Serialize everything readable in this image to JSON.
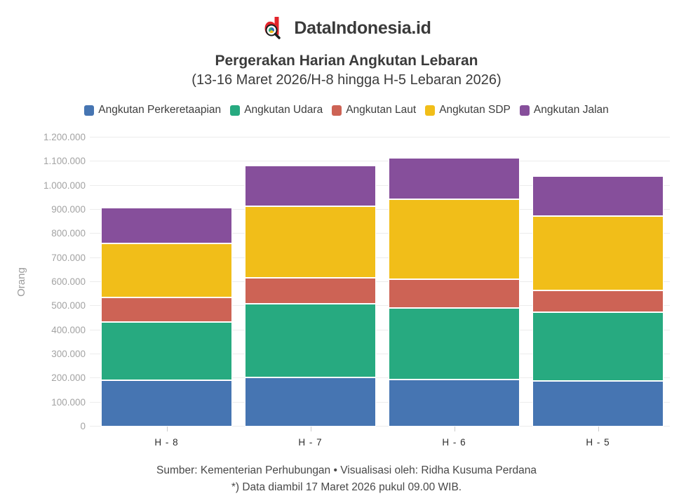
{
  "brand": {
    "name": "DataIndonesia.id",
    "logo_color": "#e3242b"
  },
  "title": "Pergerakan Harian Angkutan Lebaran",
  "subtitle": "(13-16 Maret 2026/H-8 hingga H-5 Lebaran 2026)",
  "footer": {
    "line1": "Sumber: Kementerian Perhubungan • Visualisasi oleh: Ridha Kusuma Perdana",
    "line2": "*) Data diambil 17 Maret 2026 pukul 09.00 WIB."
  },
  "chart_data": {
    "type": "bar",
    "stacked": true,
    "title": "Pergerakan Harian Angkutan Lebaran",
    "subtitle": "(13-16 Maret 2026/H-8 hingga H-5 Lebaran 2026)",
    "xlabel": "",
    "ylabel": "Orang",
    "ylim": [
      0,
      1200000
    ],
    "ytick_step": 100000,
    "ytick_labels": [
      "0",
      "100.000",
      "200.000",
      "300.000",
      "400.000",
      "500.000",
      "600.000",
      "700.000",
      "800.000",
      "900.000",
      "1.000.000",
      "1.100.000",
      "1.200.000"
    ],
    "grid": true,
    "legend_position": "top",
    "categories": [
      "H - 8",
      "H - 7",
      "H - 6",
      "H - 5"
    ],
    "series": [
      {
        "name": "Angkutan Perkeretaapian",
        "color": "#4675B2",
        "values": [
          193000,
          203000,
          196000,
          189000
        ]
      },
      {
        "name": "Angkutan Udara",
        "color": "#27AA80",
        "values": [
          241000,
          307000,
          296000,
          287000
        ]
      },
      {
        "name": "Angkutan Laut",
        "color": "#CD6355",
        "values": [
          101000,
          109000,
          119000,
          90000
        ]
      },
      {
        "name": "Angkutan SDP",
        "color": "#F1BE19",
        "values": [
          226000,
          297000,
          334000,
          307000
        ]
      },
      {
        "name": "Angkutan Jalan",
        "color": "#864F9B",
        "values": [
          149000,
          168000,
          172000,
          168000
        ]
      }
    ],
    "totals": [
      910000,
      1084000,
      1117000,
      1041000
    ],
    "gridline_color": "#ececec"
  }
}
